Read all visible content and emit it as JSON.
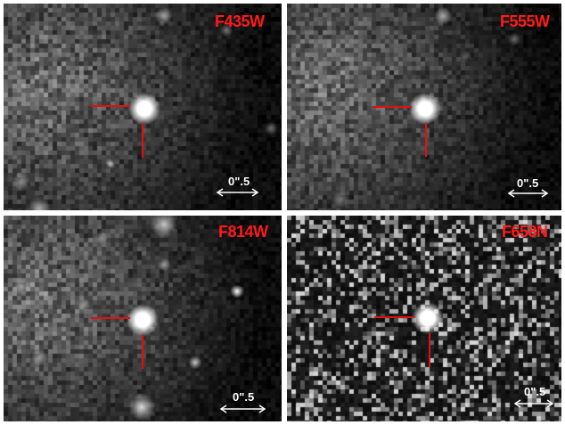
{
  "panels": [
    {
      "filter": "F435W",
      "scale_label": "0\".5",
      "noise": "diffuse"
    },
    {
      "filter": "F555W",
      "scale_label": "0\".5",
      "noise": "diffuse"
    },
    {
      "filter": "F814W",
      "scale_label": "0\".5",
      "noise": "diffuse"
    },
    {
      "filter": "F658N",
      "scale_label": "0\".5",
      "noise": "speckle"
    }
  ],
  "colors": {
    "marker": "#e01010",
    "label": "#ff1a1a",
    "scale": "#ffffff",
    "background": "#0a0a0a"
  }
}
